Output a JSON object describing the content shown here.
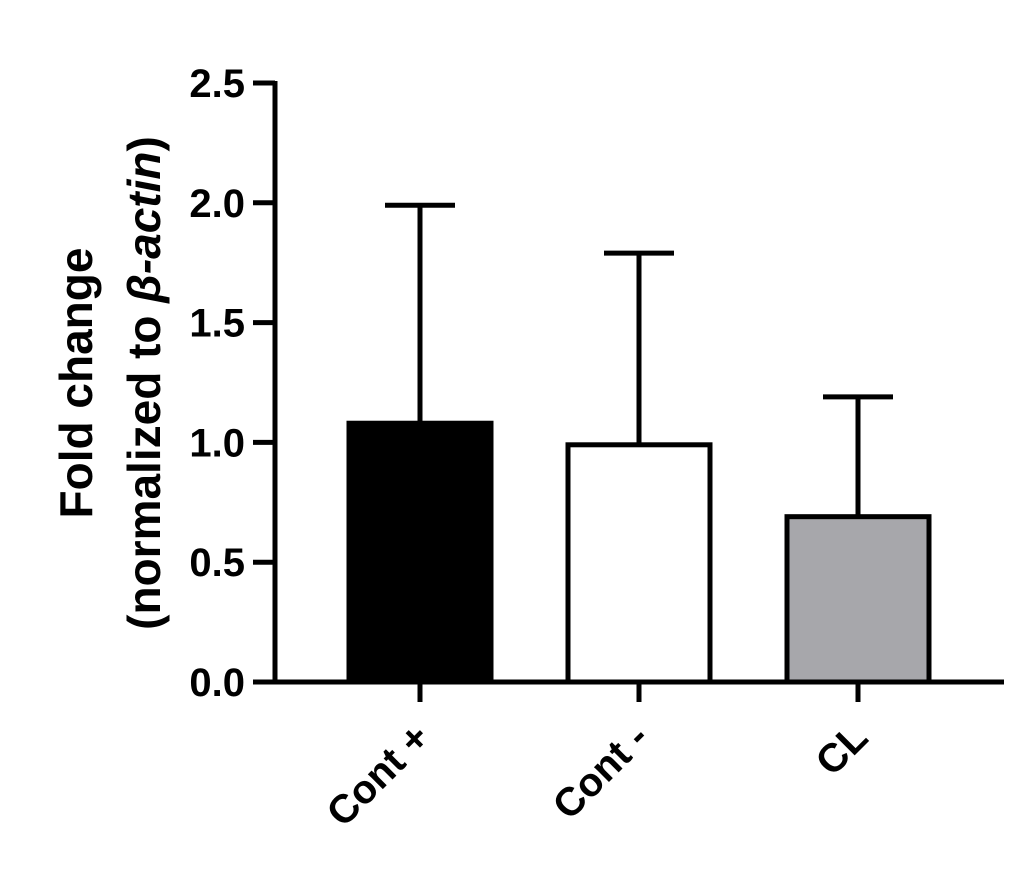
{
  "chart_data": {
    "type": "bar",
    "title": "",
    "xlabel": "",
    "ylabel_line1": "Fold change",
    "ylabel_line2_prefix": "(normalized to ",
    "ylabel_line2_symbol": "β",
    "ylabel_line2_italic": "-actin",
    "ylabel_line2_suffix": ")",
    "ylim": [
      0,
      2.5
    ],
    "yticks": [
      0.0,
      0.5,
      1.0,
      1.5,
      2.0,
      2.5
    ],
    "ytick_labels": [
      "0.0",
      "0.5",
      "1.0",
      "1.5",
      "2.0",
      "2.5"
    ],
    "categories": [
      "Cont +",
      "Cont -",
      "CL"
    ],
    "values": [
      1.08,
      0.99,
      0.69
    ],
    "error_upper": [
      1.99,
      1.79,
      1.19
    ],
    "bar_colors": [
      "#000000",
      "#ffffff",
      "#a7a7ab"
    ],
    "bar_edge_color": "#000000",
    "grid": false,
    "legend": "none"
  }
}
